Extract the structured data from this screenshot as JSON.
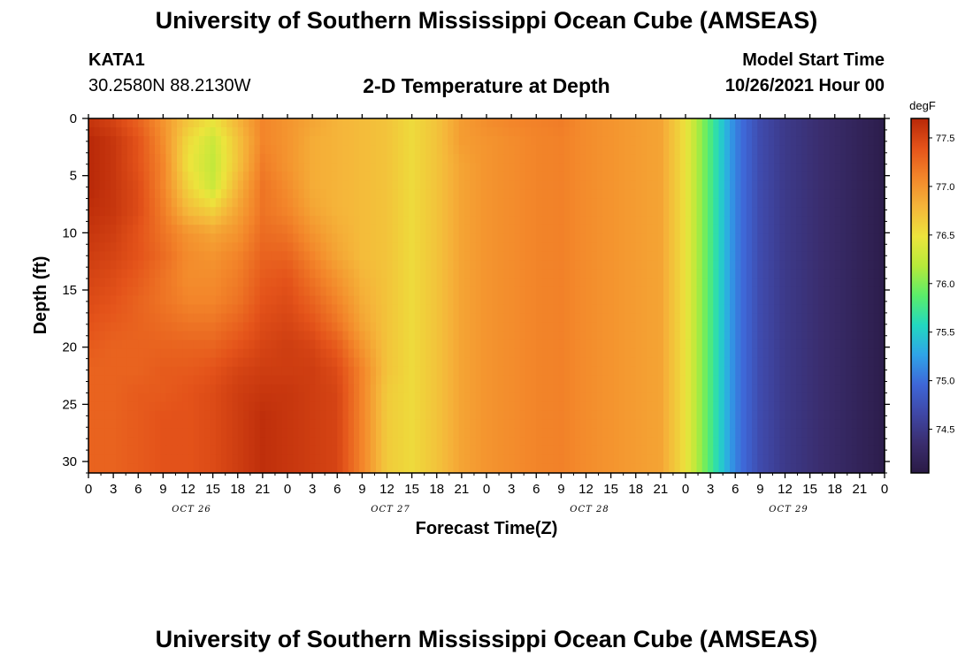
{
  "header": {
    "title": "University of Southern Mississippi Ocean Cube (AMSEAS)",
    "station_id": "KATA1",
    "coords": "30.2580N  88.2130W",
    "subtitle": "2-D Temperature at Depth",
    "start_label": "Model Start Time",
    "start_value": "10/26/2021 Hour 00"
  },
  "footer": {
    "title": "University of Southern Mississippi Ocean Cube (AMSEAS)"
  },
  "chart_data": {
    "type": "heatmap",
    "xlabel": "Forecast Time(Z)",
    "ylabel": "Depth (ft)",
    "x_unit": "forecast hours from model start",
    "xlim": [
      0,
      96
    ],
    "ylim": [
      0,
      31
    ],
    "y_inverted": true,
    "x_ticks": [
      {
        "hour": 0,
        "label": "0"
      },
      {
        "hour": 3,
        "label": "3"
      },
      {
        "hour": 6,
        "label": "6"
      },
      {
        "hour": 9,
        "label": "9"
      },
      {
        "hour": 12,
        "label": "12"
      },
      {
        "hour": 15,
        "label": "15"
      },
      {
        "hour": 18,
        "label": "18"
      },
      {
        "hour": 21,
        "label": "21"
      },
      {
        "hour": 24,
        "label": "0"
      },
      {
        "hour": 27,
        "label": "3"
      },
      {
        "hour": 30,
        "label": "6"
      },
      {
        "hour": 33,
        "label": "9"
      },
      {
        "hour": 36,
        "label": "12"
      },
      {
        "hour": 39,
        "label": "15"
      },
      {
        "hour": 42,
        "label": "18"
      },
      {
        "hour": 45,
        "label": "21"
      },
      {
        "hour": 48,
        "label": "0"
      },
      {
        "hour": 51,
        "label": "3"
      },
      {
        "hour": 54,
        "label": "6"
      },
      {
        "hour": 57,
        "label": "9"
      },
      {
        "hour": 60,
        "label": "12"
      },
      {
        "hour": 63,
        "label": "15"
      },
      {
        "hour": 66,
        "label": "18"
      },
      {
        "hour": 69,
        "label": "21"
      },
      {
        "hour": 72,
        "label": "0"
      },
      {
        "hour": 75,
        "label": "3"
      },
      {
        "hour": 78,
        "label": "6"
      },
      {
        "hour": 81,
        "label": "9"
      },
      {
        "hour": 84,
        "label": "12"
      },
      {
        "hour": 87,
        "label": "15"
      },
      {
        "hour": 90,
        "label": "18"
      },
      {
        "hour": 93,
        "label": "21"
      },
      {
        "hour": 96,
        "label": "0"
      }
    ],
    "day_labels": [
      {
        "hour": 12,
        "label": "OCT 26"
      },
      {
        "hour": 36,
        "label": "OCT 27"
      },
      {
        "hour": 60,
        "label": "OCT 28"
      },
      {
        "hour": 84,
        "label": "OCT 29"
      }
    ],
    "y_ticks": [
      0,
      5,
      10,
      15,
      20,
      25,
      30
    ],
    "colorbar": {
      "unit": "degF",
      "range": [
        74.05,
        77.7
      ],
      "ticks": [
        74.5,
        75.0,
        75.5,
        76.0,
        76.5,
        77.0,
        77.5
      ],
      "tick_labels": [
        "74.5",
        "75.0",
        "75.5",
        "76.0",
        "76.5",
        "77.0",
        "77.5"
      ],
      "colormap": [
        "#2a1a45",
        "#3a2d6e",
        "#3f47a6",
        "#3e67d8",
        "#2fa4e8",
        "#22d8c0",
        "#5aee6a",
        "#b6ea3a",
        "#ece43c",
        "#f5b63a",
        "#f3862a",
        "#e4531a",
        "#b82808"
      ]
    },
    "depths": [
      0,
      2,
      4,
      6,
      8,
      10,
      12,
      14,
      16,
      18,
      20,
      22,
      24,
      26,
      28,
      31
    ],
    "times": [
      0,
      3,
      6,
      9,
      12,
      15,
      18,
      21,
      24,
      27,
      30,
      33,
      36,
      39,
      42,
      45,
      48,
      51,
      54,
      57,
      60,
      63,
      66,
      69,
      72,
      75,
      78,
      81,
      84,
      87,
      90,
      93,
      96
    ],
    "values": [
      [
        77.6,
        77.5,
        77.3,
        77.0,
        76.7,
        76.5,
        76.8,
        77.1,
        77.0,
        76.9,
        76.8,
        76.75,
        76.7,
        76.55,
        76.7,
        76.95,
        77.05,
        77.1,
        77.12,
        77.15,
        77.05,
        77.0,
        76.95,
        76.9,
        76.5,
        75.8,
        75.1,
        74.7,
        74.5,
        74.4,
        74.3,
        74.2,
        74.1
      ],
      [
        77.7,
        77.6,
        77.4,
        77.05,
        76.55,
        76.3,
        76.7,
        77.1,
        77.0,
        76.85,
        76.8,
        76.75,
        76.7,
        76.55,
        76.7,
        76.95,
        77.0,
        77.05,
        77.1,
        77.12,
        77.05,
        77.0,
        76.95,
        76.9,
        76.5,
        75.8,
        75.1,
        74.7,
        74.5,
        74.4,
        74.3,
        74.2,
        74.1
      ],
      [
        77.7,
        77.6,
        77.4,
        77.1,
        76.5,
        76.25,
        76.7,
        77.15,
        77.0,
        76.85,
        76.8,
        76.75,
        76.7,
        76.55,
        76.7,
        76.9,
        77.0,
        77.05,
        77.1,
        77.12,
        77.05,
        77.0,
        76.95,
        76.9,
        76.5,
        75.8,
        75.1,
        74.7,
        74.5,
        74.4,
        74.3,
        74.2,
        74.1
      ],
      [
        77.7,
        77.6,
        77.45,
        77.1,
        76.6,
        76.3,
        76.8,
        77.2,
        77.05,
        76.85,
        76.8,
        76.75,
        76.7,
        76.55,
        76.7,
        76.9,
        77.0,
        77.05,
        77.1,
        77.12,
        77.05,
        77.0,
        76.95,
        76.9,
        76.5,
        75.8,
        75.1,
        74.7,
        74.5,
        74.4,
        74.3,
        74.2,
        74.1
      ],
      [
        77.65,
        77.6,
        77.45,
        77.15,
        76.75,
        76.6,
        76.9,
        77.2,
        77.1,
        76.9,
        76.8,
        76.75,
        76.7,
        76.55,
        76.7,
        76.9,
        77.0,
        77.05,
        77.1,
        77.12,
        77.05,
        77.0,
        76.95,
        76.9,
        76.5,
        75.8,
        75.1,
        74.7,
        74.5,
        74.4,
        74.3,
        74.2,
        74.1
      ],
      [
        77.6,
        77.55,
        77.4,
        77.2,
        77.0,
        76.9,
        77.0,
        77.25,
        77.2,
        77.0,
        76.85,
        76.75,
        76.7,
        76.55,
        76.7,
        76.9,
        77.0,
        77.05,
        77.1,
        77.12,
        77.05,
        77.0,
        76.95,
        76.9,
        76.5,
        75.8,
        75.1,
        74.7,
        74.5,
        74.4,
        74.3,
        74.2,
        74.1
      ],
      [
        77.55,
        77.5,
        77.4,
        77.25,
        77.05,
        77.0,
        77.1,
        77.3,
        77.3,
        77.1,
        76.9,
        76.75,
        76.7,
        76.55,
        76.7,
        76.9,
        77.0,
        77.05,
        77.1,
        77.12,
        77.05,
        77.0,
        76.95,
        76.9,
        76.5,
        75.8,
        75.1,
        74.7,
        74.5,
        74.4,
        74.3,
        74.2,
        74.1
      ],
      [
        77.5,
        77.45,
        77.35,
        77.2,
        77.05,
        77.05,
        77.15,
        77.35,
        77.4,
        77.2,
        77.0,
        76.8,
        76.7,
        76.55,
        76.7,
        76.9,
        77.0,
        77.05,
        77.1,
        77.12,
        77.05,
        77.0,
        76.95,
        76.9,
        76.5,
        75.8,
        75.1,
        74.7,
        74.5,
        74.4,
        74.3,
        74.2,
        74.1
      ],
      [
        77.45,
        77.4,
        77.3,
        77.2,
        77.1,
        77.1,
        77.2,
        77.4,
        77.45,
        77.3,
        77.1,
        76.85,
        76.7,
        76.55,
        76.7,
        76.9,
        77.0,
        77.05,
        77.1,
        77.12,
        77.05,
        77.0,
        76.95,
        76.9,
        76.5,
        75.8,
        75.1,
        74.7,
        74.5,
        74.4,
        74.3,
        74.2,
        74.1
      ],
      [
        77.4,
        77.35,
        77.3,
        77.25,
        77.2,
        77.2,
        77.3,
        77.45,
        77.5,
        77.4,
        77.2,
        76.9,
        76.7,
        76.55,
        76.7,
        76.9,
        77.0,
        77.05,
        77.1,
        77.12,
        77.05,
        77.0,
        76.95,
        76.9,
        76.5,
        75.8,
        75.1,
        74.7,
        74.5,
        74.4,
        74.3,
        74.2,
        74.1
      ],
      [
        77.35,
        77.3,
        77.3,
        77.3,
        77.3,
        77.3,
        77.4,
        77.5,
        77.55,
        77.5,
        77.35,
        77.0,
        76.7,
        76.55,
        76.7,
        76.9,
        77.0,
        77.05,
        77.1,
        77.12,
        77.05,
        77.0,
        76.95,
        76.9,
        76.5,
        75.8,
        75.1,
        74.7,
        74.5,
        74.4,
        74.3,
        74.2,
        74.1
      ],
      [
        77.3,
        77.3,
        77.3,
        77.35,
        77.35,
        77.4,
        77.5,
        77.55,
        77.55,
        77.55,
        77.45,
        77.1,
        76.7,
        76.55,
        76.7,
        76.9,
        77.0,
        77.05,
        77.1,
        77.12,
        77.05,
        77.0,
        76.95,
        76.9,
        76.5,
        75.8,
        75.1,
        74.7,
        74.5,
        74.4,
        74.3,
        74.2,
        74.1
      ],
      [
        77.3,
        77.3,
        77.35,
        77.35,
        77.4,
        77.45,
        77.55,
        77.6,
        77.6,
        77.55,
        77.5,
        77.1,
        76.65,
        76.55,
        76.7,
        76.9,
        77.0,
        77.05,
        77.1,
        77.12,
        77.05,
        77.0,
        76.95,
        76.9,
        76.5,
        75.8,
        75.1,
        74.7,
        74.5,
        74.4,
        74.3,
        74.2,
        74.1
      ],
      [
        77.3,
        77.3,
        77.35,
        77.4,
        77.4,
        77.45,
        77.55,
        77.65,
        77.6,
        77.55,
        77.5,
        77.1,
        76.65,
        76.55,
        76.7,
        76.9,
        77.0,
        77.05,
        77.1,
        77.12,
        77.05,
        77.0,
        76.95,
        76.9,
        76.5,
        75.8,
        75.1,
        74.7,
        74.5,
        74.4,
        74.3,
        74.2,
        74.1
      ],
      [
        77.3,
        77.3,
        77.35,
        77.4,
        77.4,
        77.45,
        77.55,
        77.65,
        77.6,
        77.55,
        77.5,
        77.1,
        76.65,
        76.55,
        76.7,
        76.9,
        77.0,
        77.05,
        77.1,
        77.12,
        77.05,
        77.0,
        76.95,
        76.9,
        76.5,
        75.8,
        75.1,
        74.7,
        74.5,
        74.4,
        74.3,
        74.2,
        74.1
      ],
      [
        77.3,
        77.3,
        77.35,
        77.4,
        77.4,
        77.45,
        77.55,
        77.65,
        77.6,
        77.55,
        77.5,
        77.1,
        76.65,
        76.55,
        76.7,
        76.9,
        77.0,
        77.05,
        77.1,
        77.12,
        77.05,
        77.0,
        76.95,
        76.9,
        76.5,
        75.8,
        75.1,
        74.7,
        74.5,
        74.4,
        74.3,
        74.2,
        74.1
      ]
    ]
  }
}
